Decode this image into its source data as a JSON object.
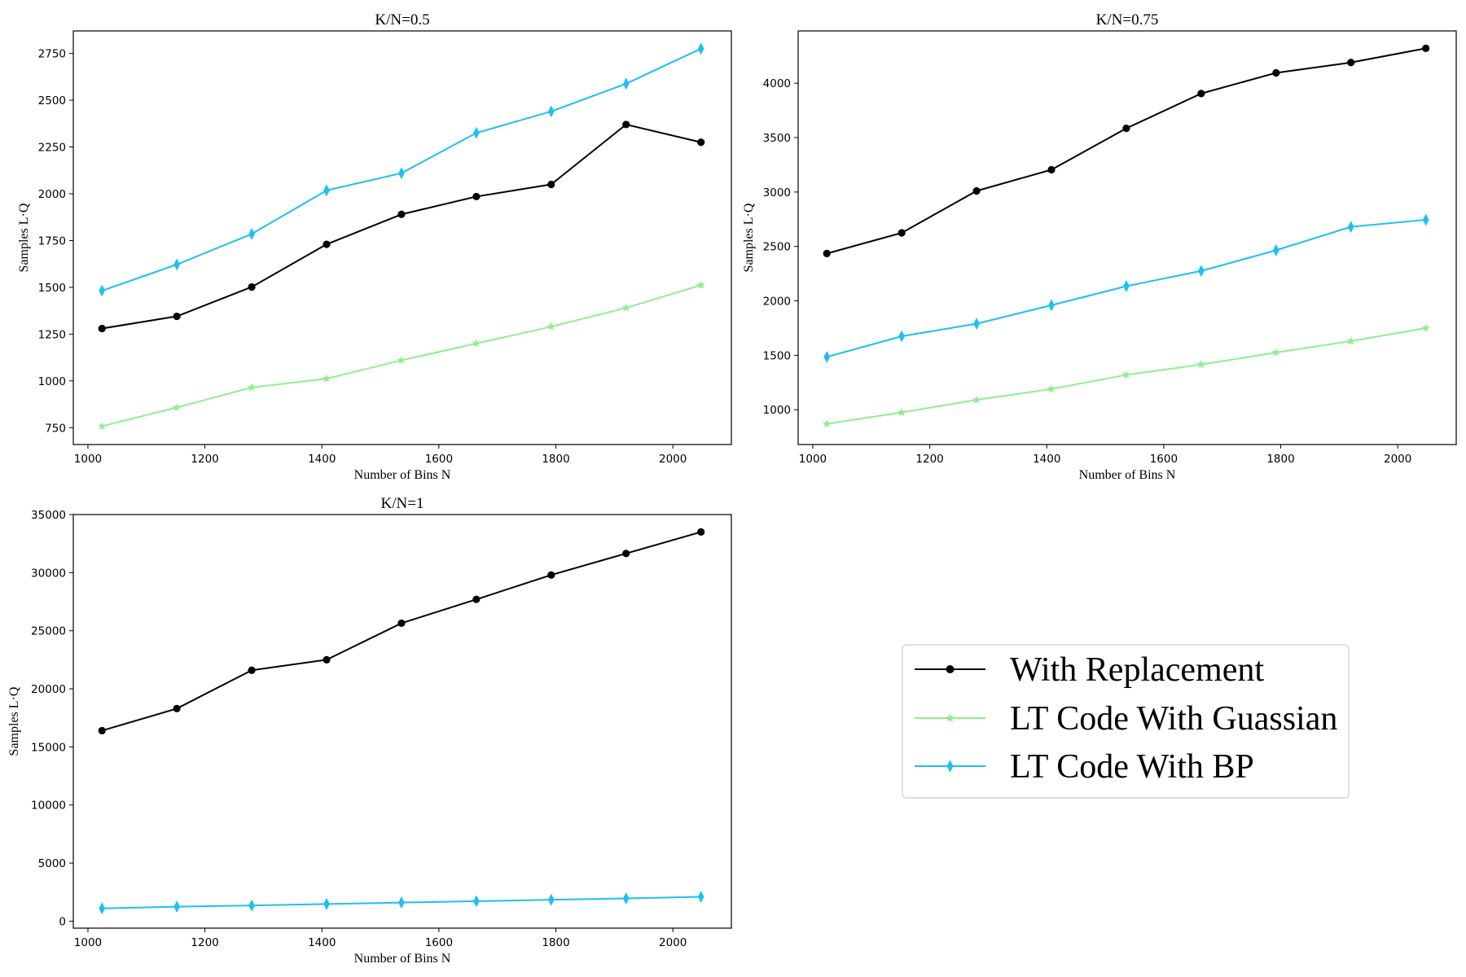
{
  "chart_data": [
    {
      "type": "line",
      "title": "K/N=0.5",
      "xlabel": "Number of Bins N",
      "ylabel": "Samples L·Q",
      "xlim": [
        975,
        2100
      ],
      "ylim": [
        660,
        2870
      ],
      "xticks": [
        1000,
        1200,
        1400,
        1600,
        1800,
        2000
      ],
      "yticks": [
        750,
        1000,
        1250,
        1500,
        1750,
        2000,
        2250,
        2500,
        2750
      ],
      "x": [
        1024,
        1152,
        1280,
        1408,
        1536,
        1664,
        1792,
        1920,
        2048
      ],
      "series": [
        {
          "name": "With Replacement",
          "color": "#000000",
          "marker": "circle",
          "values": [
            1280,
            1345,
            1502,
            1730,
            1890,
            1985,
            2050,
            2370,
            2275
          ]
        },
        {
          "name": "LT Code With Guassian",
          "color": "#90ee90",
          "marker": "star",
          "values": [
            758,
            858,
            965,
            1012,
            1110,
            1200,
            1290,
            1390,
            1512
          ]
        },
        {
          "name": "LT Code With BP",
          "color": "#1ec0f0",
          "marker": "diamond",
          "values": [
            1482,
            1622,
            1785,
            2018,
            2110,
            2325,
            2440,
            2588,
            2775
          ]
        }
      ]
    },
    {
      "type": "line",
      "title": "K/N=0.75",
      "xlabel": "Number of Bins N",
      "ylabel": "Samples L·Q",
      "xlim": [
        975,
        2100
      ],
      "ylim": [
        680,
        4480
      ],
      "xticks": [
        1000,
        1200,
        1400,
        1600,
        1800,
        2000
      ],
      "yticks": [
        1000,
        1500,
        2000,
        2500,
        3000,
        3500,
        4000
      ],
      "x": [
        1024,
        1152,
        1280,
        1408,
        1536,
        1664,
        1792,
        1920,
        2048
      ],
      "series": [
        {
          "name": "With Replacement",
          "color": "#000000",
          "marker": "circle",
          "values": [
            2435,
            2625,
            3010,
            3205,
            3585,
            3905,
            4095,
            4190,
            4320
          ]
        },
        {
          "name": "LT Code With Guassian",
          "color": "#90ee90",
          "marker": "star",
          "values": [
            870,
            975,
            1090,
            1190,
            1320,
            1415,
            1525,
            1630,
            1750
          ]
        },
        {
          "name": "LT Code With BP",
          "color": "#1ec0f0",
          "marker": "diamond",
          "values": [
            1485,
            1675,
            1790,
            1960,
            2135,
            2275,
            2465,
            2680,
            2745
          ]
        }
      ]
    },
    {
      "type": "line",
      "title": "K/N=1",
      "xlabel": "Number of Bins N",
      "ylabel": "Samples L·Q",
      "xlim": [
        975,
        2100
      ],
      "ylim": [
        -600,
        35000
      ],
      "xticks": [
        1000,
        1200,
        1400,
        1600,
        1800,
        2000
      ],
      "yticks": [
        0,
        5000,
        10000,
        15000,
        20000,
        25000,
        30000,
        35000
      ],
      "x": [
        1024,
        1152,
        1280,
        1408,
        1536,
        1664,
        1792,
        1920,
        2048
      ],
      "series": [
        {
          "name": "With Replacement",
          "color": "#000000",
          "marker": "circle",
          "values": [
            16400,
            18300,
            21600,
            22500,
            25650,
            27700,
            29800,
            31650,
            33500
          ]
        },
        {
          "name": "LT Code With BP",
          "color": "#1ec0f0",
          "marker": "diamond",
          "values": [
            1100,
            1250,
            1350,
            1480,
            1600,
            1720,
            1840,
            1960,
            2100
          ]
        }
      ]
    }
  ],
  "legend": {
    "placement": "lower-right",
    "entries": [
      {
        "label": "With Replacement",
        "color": "#000000",
        "marker": "circle"
      },
      {
        "label": "LT Code With Guassian",
        "color": "#90ee90",
        "marker": "star"
      },
      {
        "label": "LT Code With BP",
        "color": "#1ec0f0",
        "marker": "diamond"
      }
    ]
  }
}
